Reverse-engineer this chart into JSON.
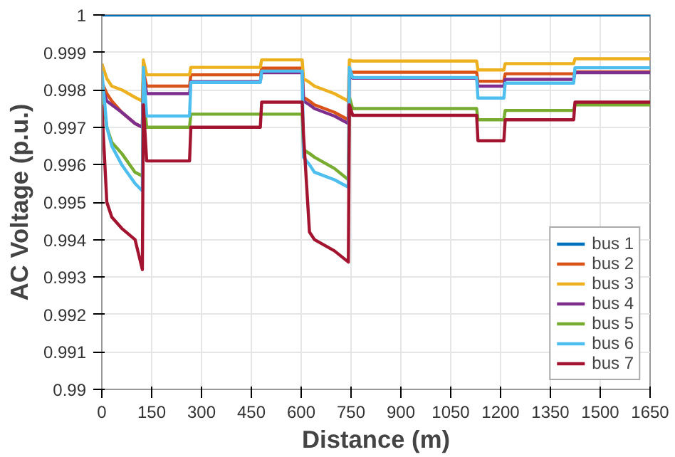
{
  "chart_data": {
    "type": "line",
    "xlabel": "Distance (m)",
    "ylabel": "AC Voltage (p.u.)",
    "x": [
      0,
      15,
      30,
      60,
      100,
      122,
      125,
      135,
      264,
      268,
      477,
      481,
      603,
      607,
      625,
      640,
      700,
      742,
      745,
      755,
      1128,
      1132,
      1210,
      1214,
      1420,
      1424,
      1650
    ],
    "series": [
      {
        "name": "bus 1",
        "color": "#0072bd",
        "values": [
          1,
          1,
          1,
          1,
          1,
          1,
          1,
          1,
          1,
          1,
          1,
          1,
          1,
          1,
          1,
          1,
          1,
          1,
          1,
          1,
          1,
          1,
          1,
          1,
          1,
          1,
          1
        ]
      },
      {
        "name": "bus 2",
        "color": "#d95319",
        "values": [
          0.9982,
          0.9979,
          0.9977,
          0.9974,
          0.9971,
          0.997,
          0.9985,
          0.9981,
          0.9981,
          0.9984,
          0.9984,
          0.99858,
          0.99858,
          0.9978,
          0.9977,
          0.9976,
          0.9974,
          0.9972,
          0.9985,
          0.99847,
          0.99847,
          0.99823,
          0.99823,
          0.99843,
          0.99843,
          0.99848,
          0.99848
        ]
      },
      {
        "name": "bus 3",
        "color": "#edb120",
        "values": [
          0.9987,
          0.9983,
          0.9981,
          0.998,
          0.9978,
          0.9977,
          0.9988,
          0.9984,
          0.9984,
          0.9986,
          0.9986,
          0.9988,
          0.9988,
          0.9983,
          0.9982,
          0.9981,
          0.9979,
          0.9977,
          0.9988,
          0.99877,
          0.99877,
          0.99853,
          0.99853,
          0.9987,
          0.9987,
          0.99883,
          0.99883
        ]
      },
      {
        "name": "bus 4",
        "color": "#7e2f8e",
        "values": [
          0.9981,
          0.9977,
          0.9976,
          0.9974,
          0.9971,
          0.997,
          0.9984,
          0.9979,
          0.9979,
          0.99822,
          0.99822,
          0.99846,
          0.99846,
          0.9977,
          0.9976,
          0.9975,
          0.9973,
          0.9971,
          0.9984,
          0.99831,
          0.99831,
          0.9981,
          0.9981,
          0.99828,
          0.99828,
          0.99846,
          0.99846
        ]
      },
      {
        "name": "bus 5",
        "color": "#77ac30",
        "values": [
          0.998,
          0.997,
          0.9966,
          0.9963,
          0.9958,
          0.9957,
          0.9979,
          0.997,
          0.997,
          0.99735,
          0.99735,
          0.99735,
          0.99735,
          0.9964,
          0.9963,
          0.9962,
          0.9959,
          0.9956,
          0.9978,
          0.9975,
          0.9975,
          0.9972,
          0.9972,
          0.99745,
          0.99745,
          0.9976,
          0.9976
        ]
      },
      {
        "name": "bus 6",
        "color": "#4dbeee",
        "values": [
          0.9985,
          0.997,
          0.9965,
          0.996,
          0.9955,
          0.9953,
          0.9986,
          0.9973,
          0.9973,
          0.9982,
          0.9982,
          0.9985,
          0.9985,
          0.9962,
          0.996,
          0.9958,
          0.9956,
          0.9954,
          0.9986,
          0.99833,
          0.99833,
          0.99778,
          0.99778,
          0.99818,
          0.99818,
          0.99859,
          0.99859
        ]
      },
      {
        "name": "bus 7",
        "color": "#a2142f",
        "values": [
          0.9976,
          0.995,
          0.9946,
          0.9943,
          0.994,
          0.9932,
          0.9976,
          0.9961,
          0.9961,
          0.997,
          0.997,
          0.99767,
          0.99767,
          0.9968,
          0.9942,
          0.994,
          0.9937,
          0.9934,
          0.9976,
          0.99732,
          0.99732,
          0.99664,
          0.99664,
          0.9972,
          0.9972,
          0.99767,
          0.99767
        ]
      }
    ],
    "xlim": [
      0,
      1650
    ],
    "xticks": [
      0,
      150,
      300,
      450,
      600,
      750,
      900,
      1050,
      1200,
      1350,
      1500,
      1650
    ],
    "ylim": [
      0.99,
      1
    ],
    "yticks": [
      0.99,
      0.991,
      0.992,
      0.993,
      0.994,
      0.995,
      0.996,
      0.997,
      0.998,
      0.999,
      1
    ],
    "grid": true,
    "legend": "bottom right",
    "line_style": "solid"
  }
}
